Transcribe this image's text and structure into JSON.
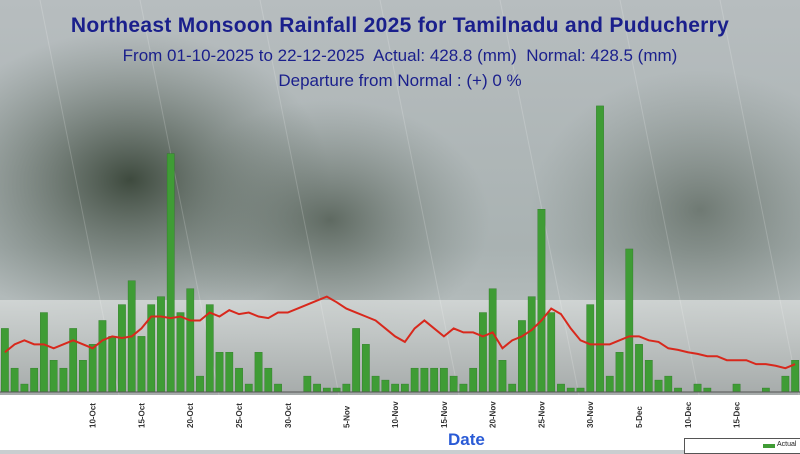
{
  "title": "Northeast  Monsoon Rainfall 2025 for Tamilnadu and Puducherry",
  "subtitle_period": "From 01-10-2025 to 22-12-2025",
  "subtitle_actual": "Actual: 428.8 (mm)",
  "subtitle_normal": "Normal: 428.5 (mm)",
  "departure": "Departure from Normal : (+) 0 %",
  "colors": {
    "title": "#1a1f8c",
    "bar": "#3f9c35",
    "normal_line": "#d8281c",
    "xlabel": "#2a5bd6"
  },
  "chart_data": {
    "type": "bar",
    "xlabel": "Date",
    "ylabel": "",
    "legend": [
      {
        "name": "Actual"
      }
    ],
    "legend_position": "bottom-right",
    "tick_labels": [
      "10-Oct",
      "15-Oct",
      "20-Oct",
      "25-Oct",
      "30-Oct",
      "5-Nov",
      "10-Nov",
      "15-Nov",
      "20-Nov",
      "25-Nov",
      "30-Nov",
      "5-Dec",
      "10-Dec",
      "15-Dec"
    ],
    "series": [
      {
        "name": "Actual",
        "kind": "bar",
        "values": [
          8,
          3,
          1,
          3,
          10,
          4,
          3,
          8,
          4,
          6,
          9,
          7,
          11,
          14,
          7,
          11,
          12,
          30,
          10,
          13,
          2,
          11,
          5,
          5,
          3,
          1,
          5,
          3,
          1,
          0,
          0,
          2,
          1,
          0.5,
          0.5,
          1,
          8,
          6,
          2,
          1.5,
          1,
          1,
          3,
          3,
          3,
          3,
          2,
          1,
          3,
          10,
          13,
          4,
          1,
          9,
          12,
          23,
          10,
          1,
          0.5,
          0.5,
          11,
          36,
          2,
          5,
          18,
          6,
          4,
          1.5,
          2,
          0.5,
          0,
          1,
          0.5,
          0,
          0,
          1,
          0,
          0,
          0.5,
          0,
          2,
          4
        ]
      },
      {
        "name": "Normal",
        "kind": "line",
        "values": [
          5,
          6,
          6.5,
          6,
          6,
          5.5,
          6,
          6.5,
          6,
          5.5,
          6.5,
          7,
          6.8,
          7,
          8,
          9.5,
          9.5,
          9.3,
          9.5,
          9,
          9,
          10,
          9.5,
          10.3,
          9.8,
          10,
          9.5,
          9.3,
          10,
          10,
          10.5,
          11,
          11.5,
          12,
          11.3,
          10.5,
          10,
          9.5,
          9,
          8,
          7,
          6.3,
          8,
          9,
          8,
          7,
          8,
          7.5,
          7.5,
          7,
          7.5,
          5.5,
          6.5,
          7,
          7.8,
          9,
          10.5,
          9.8,
          8,
          6.5,
          6,
          6,
          6,
          6.5,
          7,
          7,
          6.5,
          6.3,
          5.5,
          5.3,
          5,
          4.8,
          4.5,
          4.5,
          4,
          4,
          4,
          3.5,
          3.5,
          3.3,
          3,
          3.5
        ]
      }
    ]
  }
}
